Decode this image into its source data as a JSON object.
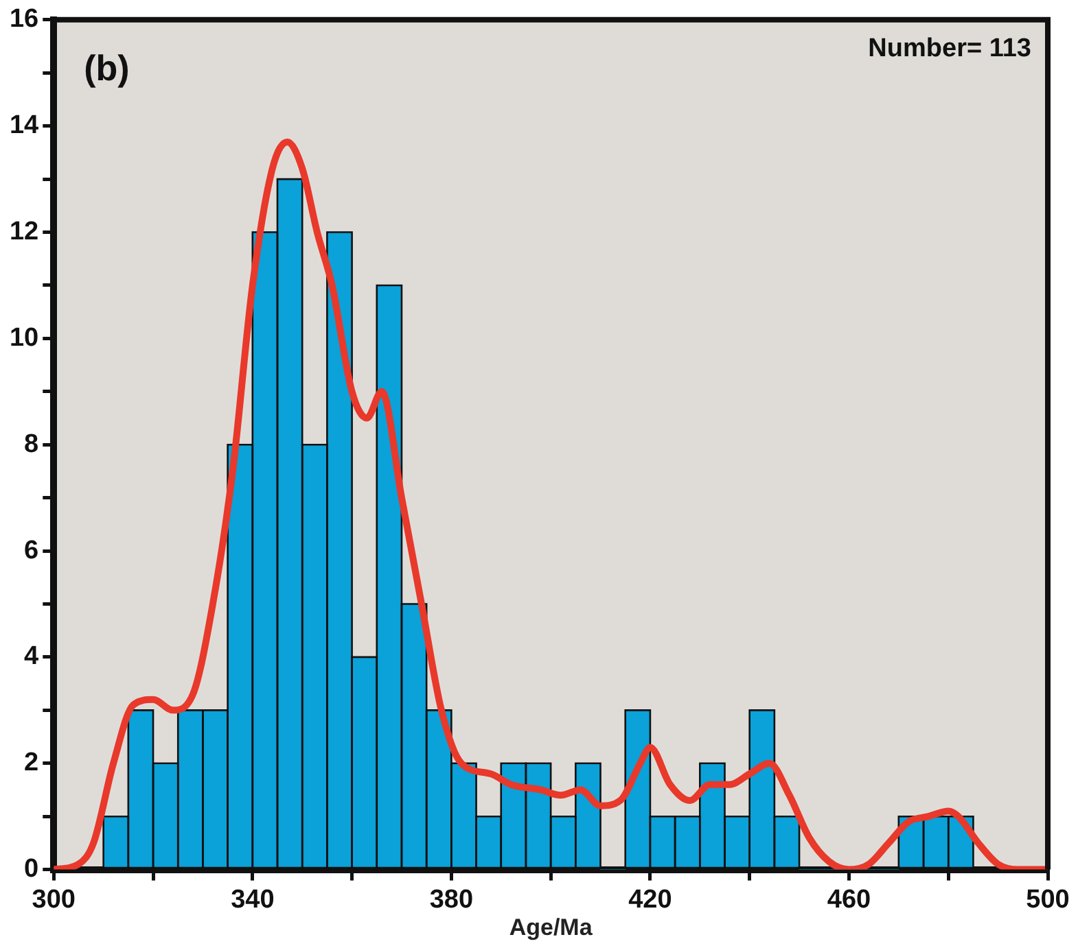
{
  "chart_data": {
    "type": "histogram",
    "xlabel": "Age/Ma",
    "annotations": [
      "(b)",
      "Number= 113"
    ],
    "bins": [
      310,
      315,
      320,
      325,
      330,
      335,
      340,
      345,
      350,
      355,
      360,
      365,
      370,
      375,
      380,
      385,
      390,
      395,
      400,
      405,
      410,
      415,
      420,
      425,
      430,
      435,
      440,
      445,
      450,
      455,
      460,
      465,
      470,
      475,
      480,
      485
    ],
    "values": [
      1,
      3,
      2,
      3,
      3,
      8,
      12,
      13,
      8,
      12,
      4,
      11,
      5,
      3,
      2,
      1,
      2,
      2,
      1,
      2,
      0,
      3,
      1,
      1,
      2,
      1,
      3,
      1,
      0,
      0,
      0,
      0,
      1,
      1,
      1
    ],
    "color": "#0ba1d9",
    "series": [
      {
        "type": "line",
        "color": "#e8392b",
        "x": [
          300,
          305,
          308,
          312,
          316,
          320,
          324,
          328,
          332,
          336,
          340,
          344,
          347,
          350,
          353,
          356,
          360,
          363,
          366,
          370,
          374,
          378,
          382,
          388,
          392,
          398,
          402,
          406,
          410,
          414,
          418,
          420,
          424,
          428,
          432,
          436,
          440,
          444,
          448,
          452,
          456,
          460,
          464,
          468,
          472,
          476,
          480,
          482,
          486,
          490,
          494,
          500
        ],
        "values": [
          0,
          0.1,
          0.5,
          2,
          3.1,
          3.2,
          3,
          3.3,
          5,
          7.5,
          11,
          13.2,
          13.7,
          13.2,
          12,
          11,
          9,
          8.5,
          9,
          7,
          5,
          3,
          2,
          1.8,
          1.6,
          1.5,
          1.4,
          1.5,
          1.2,
          1.3,
          2,
          2.3,
          1.6,
          1.3,
          1.6,
          1.6,
          1.8,
          2,
          1.4,
          0.6,
          0.15,
          0,
          0.1,
          0.5,
          0.9,
          1,
          1.1,
          1,
          0.5,
          0.1,
          0,
          0
        ]
      }
    ],
    "xlim": [
      300,
      500
    ],
    "xticks": [
      300,
      {
        "value": 320,
        "label": null
      },
      340,
      {
        "value": 360,
        "label": null
      },
      380,
      {
        "value": 400,
        "label": null
      },
      420,
      {
        "value": 440,
        "label": null
      },
      460,
      {
        "value": 480,
        "label": null
      },
      500
    ],
    "ylim": [
      0,
      16
    ],
    "yticks": [
      0,
      {
        "value": 1,
        "label": null
      },
      2,
      {
        "value": 3,
        "label": null
      },
      4,
      {
        "value": 5,
        "label": null
      },
      6,
      {
        "value": 7,
        "label": null
      },
      8,
      {
        "value": 9,
        "label": null
      },
      10,
      {
        "value": 11,
        "label": null
      },
      12,
      {
        "value": 13,
        "label": null
      },
      14,
      {
        "value": 15,
        "label": null
      },
      16
    ],
    "grid": false,
    "legend": false,
    "marker": "none",
    "line_style": "solid"
  }
}
